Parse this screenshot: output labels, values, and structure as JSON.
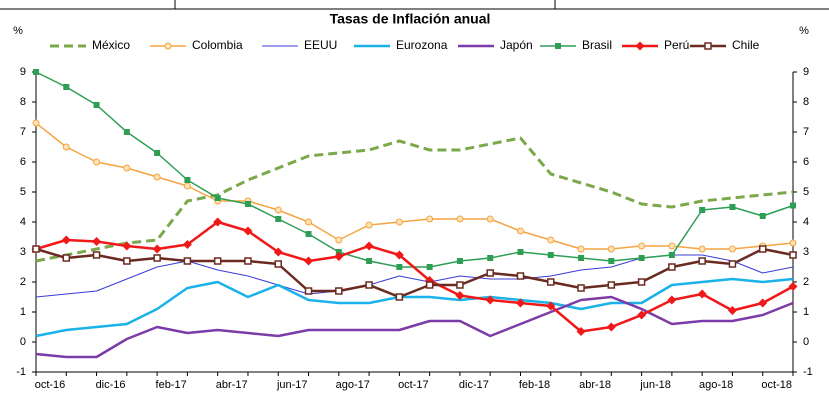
{
  "chart_data": {
    "type": "line",
    "title": "Tasas de Inflación anual",
    "y_label": "%",
    "y2_label": "%",
    "categories": [
      "oct-16",
      null,
      "dic-16",
      null,
      "feb-17",
      null,
      "abr-17",
      null,
      "jun-17",
      null,
      "ago-17",
      null,
      "oct-17",
      null,
      "dic-17",
      null,
      "feb-18",
      null,
      "abr-18",
      null,
      "jun-18",
      null,
      "ago-18",
      null,
      "oct-18",
      null
    ],
    "ylim": [
      -1,
      9
    ],
    "yticks": [
      -1,
      0,
      1,
      2,
      3,
      4,
      5,
      6,
      7,
      8,
      9
    ],
    "series": [
      {
        "name": "México",
        "color": "#7aa84a",
        "dash": true,
        "marker": "none",
        "width": 3,
        "values": [
          2.7,
          2.9,
          3.1,
          3.3,
          3.4,
          4.7,
          4.9,
          5.4,
          5.8,
          6.2,
          6.3,
          6.4,
          6.7,
          6.4,
          6.4,
          6.6,
          6.8,
          5.6,
          5.3,
          5.0,
          4.6,
          4.5,
          4.7,
          4.8,
          4.9,
          5.0
        ]
      },
      {
        "name": "Colombia",
        "color": "#f5a442",
        "dash": false,
        "marker": "circle",
        "width": 1.5,
        "values": [
          7.3,
          6.5,
          6.0,
          5.8,
          5.5,
          5.2,
          4.7,
          4.7,
          4.4,
          4.0,
          3.4,
          3.9,
          4.0,
          4.1,
          4.1,
          4.1,
          3.7,
          3.4,
          3.1,
          3.1,
          3.2,
          3.2,
          3.1,
          3.1,
          3.2,
          3.3
        ]
      },
      {
        "name": "EEUU",
        "color": "#3b3bd9",
        "dash": false,
        "marker": "none",
        "width": 1,
        "values": [
          1.5,
          1.6,
          1.7,
          2.1,
          2.5,
          2.7,
          2.4,
          2.2,
          1.9,
          1.6,
          1.7,
          1.9,
          2.2,
          2.0,
          2.2,
          2.1,
          2.1,
          2.2,
          2.4,
          2.5,
          2.8,
          2.9,
          2.9,
          2.7,
          2.3,
          2.5
        ]
      },
      {
        "name": "Eurozona",
        "color": "#1ab2e8",
        "dash": false,
        "marker": "none",
        "width": 2.5,
        "values": [
          0.2,
          0.4,
          0.5,
          0.6,
          1.1,
          1.8,
          2.0,
          1.5,
          1.9,
          1.4,
          1.3,
          1.3,
          1.5,
          1.5,
          1.4,
          1.5,
          1.4,
          1.3,
          1.1,
          1.3,
          1.3,
          1.9,
          2.0,
          2.1,
          2.0,
          2.1
        ]
      },
      {
        "name": "Japón",
        "color": "#7b3ca8",
        "dash": false,
        "marker": "none",
        "width": 2.5,
        "values": [
          -0.4,
          -0.5,
          -0.5,
          0.1,
          0.5,
          0.3,
          0.4,
          0.3,
          0.2,
          0.4,
          0.4,
          0.4,
          0.4,
          0.7,
          0.7,
          0.2,
          0.6,
          1.0,
          1.4,
          1.5,
          1.1,
          0.6,
          0.7,
          0.7,
          0.9,
          1.3
        ]
      },
      {
        "name": "Brasil",
        "color": "#2e9e55",
        "dash": false,
        "marker": "square",
        "width": 1.5,
        "values": [
          9.0,
          8.5,
          7.9,
          7.0,
          6.3,
          5.4,
          4.8,
          4.6,
          4.1,
          3.6,
          3.0,
          2.7,
          2.5,
          2.5,
          2.7,
          2.8,
          3.0,
          2.9,
          2.8,
          2.7,
          2.8,
          2.9,
          4.4,
          4.5,
          4.2,
          4.55
        ]
      },
      {
        "name": "Perú",
        "color": "#f01818",
        "dash": false,
        "marker": "diamond",
        "width": 2.5,
        "values": [
          3.1,
          3.4,
          3.35,
          3.2,
          3.1,
          3.25,
          4.0,
          3.7,
          3.0,
          2.7,
          2.85,
          3.2,
          2.9,
          2.05,
          1.55,
          1.4,
          1.3,
          1.2,
          0.35,
          0.5,
          0.9,
          1.4,
          1.6,
          1.05,
          1.3,
          1.85
        ]
      },
      {
        "name": "Chile",
        "color": "#6b2a20",
        "dash": false,
        "marker": "hollow-square",
        "width": 2.5,
        "values": [
          3.1,
          2.8,
          2.9,
          2.7,
          2.8,
          2.7,
          2.7,
          2.7,
          2.6,
          1.7,
          1.7,
          1.9,
          1.5,
          1.9,
          1.9,
          2.3,
          2.2,
          2.0,
          1.8,
          1.9,
          2.0,
          2.5,
          2.7,
          2.6,
          3.1,
          2.9
        ]
      }
    ]
  }
}
